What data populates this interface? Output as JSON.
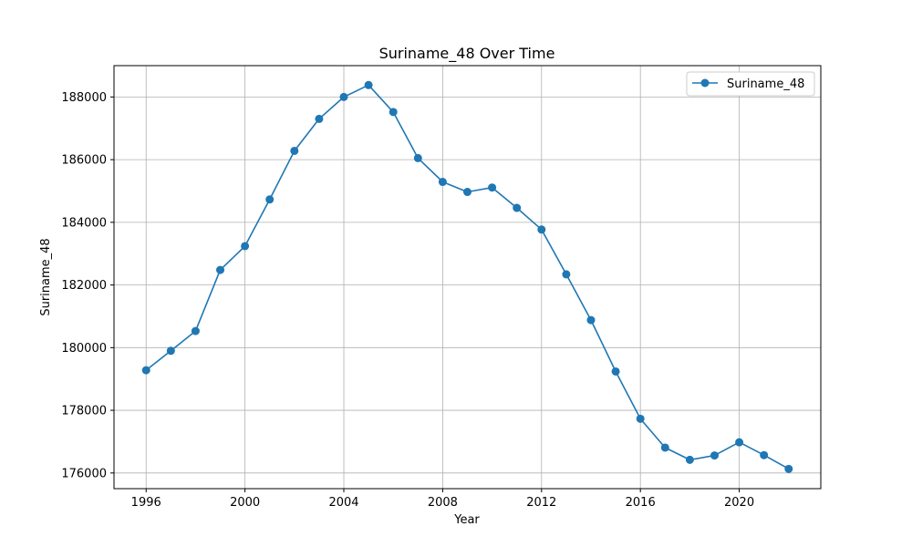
{
  "chart_data": {
    "type": "line",
    "title": "Suriname_48 Over Time",
    "xlabel": "Year",
    "ylabel": "Suriname_48",
    "xlim": [
      1994.7,
      2023.3
    ],
    "ylim": [
      175500,
      189000
    ],
    "xticks": [
      1996,
      2000,
      2004,
      2008,
      2012,
      2016,
      2020
    ],
    "yticks": [
      176000,
      178000,
      180000,
      182000,
      184000,
      186000,
      188000
    ],
    "grid": true,
    "legend_position": "top-right",
    "series": [
      {
        "name": "Suriname_48",
        "color": "#1f77b4",
        "marker": "circle",
        "x": [
          1996,
          1997,
          1998,
          1999,
          2000,
          2001,
          2002,
          2003,
          2004,
          2005,
          2006,
          2007,
          2008,
          2009,
          2010,
          2011,
          2012,
          2013,
          2014,
          2015,
          2016,
          2017,
          2018,
          2019,
          2020,
          2021,
          2022
        ],
        "y": [
          179280,
          179900,
          180530,
          182480,
          183240,
          184730,
          186280,
          187300,
          188000,
          188380,
          187520,
          186050,
          185290,
          184970,
          185110,
          184460,
          183770,
          182340,
          180880,
          179240,
          177730,
          176810,
          176420,
          176560,
          176980,
          176570,
          176130
        ]
      }
    ]
  }
}
